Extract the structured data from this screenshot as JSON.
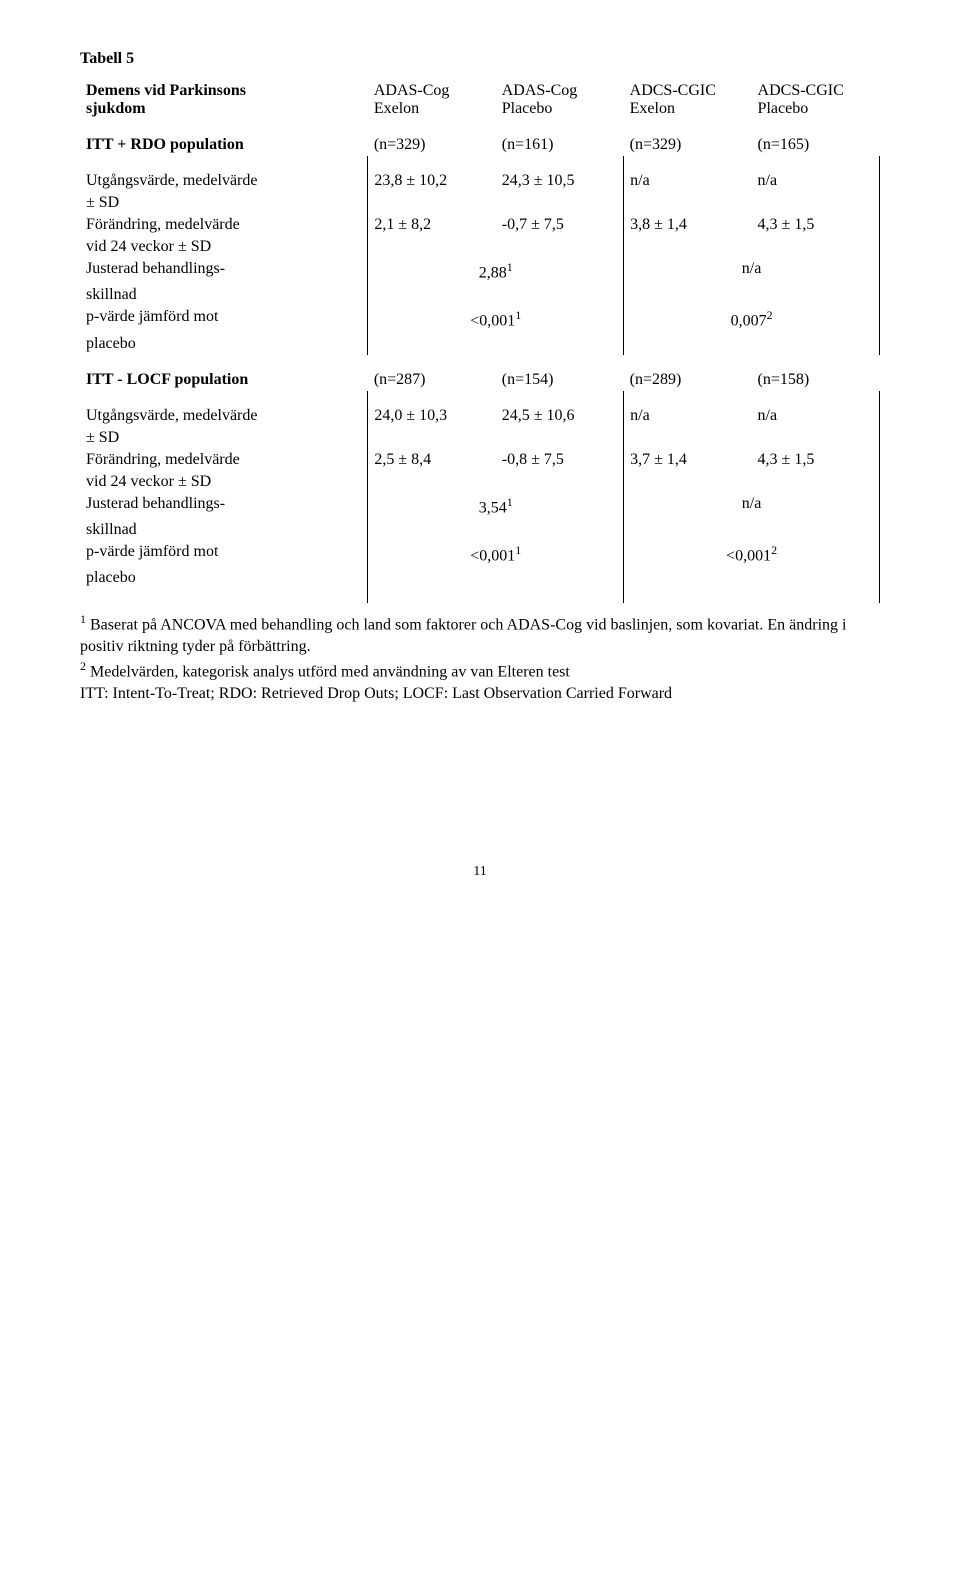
{
  "caption": "Tabell 5",
  "header": {
    "row_label_1": "Demens vid Parkinsons",
    "row_label_2": "sjukdom",
    "c1_l1": "ADAS-Cog",
    "c1_l2": "Exelon",
    "c2_l1": "ADAS-Cog",
    "c2_l2": "Placebo",
    "c3_l1": "ADCS-CGIC",
    "c3_l2": "Exelon",
    "c4_l1": "ADCS-CGIC",
    "c4_l2": "Placebo"
  },
  "section1": {
    "title": "ITT + RDO population",
    "n1": "(n=329)",
    "n2": "(n=161)",
    "n3": "(n=329)",
    "n4": "(n=165)",
    "r1": {
      "l1": "Utgångsvärde, medelvärde",
      "l2": "± SD",
      "c1": "23,8 ± 10,2",
      "c2": "24,3 ± 10,5",
      "c3": "n/a",
      "c4": "n/a"
    },
    "r2": {
      "l1": "Förändring, medelvärde",
      "l2": "vid 24 veckor ± SD",
      "c1": "2,1 ± 8,2",
      "c2": "-0,7 ± 7,5",
      "c3": "3,8 ± 1,4",
      "c4": "4,3 ± 1,5"
    },
    "r3": {
      "l1": "Justerad behandlings-",
      "l2": "skillnad",
      "v12": "2,88",
      "sup12": "1",
      "v34": "n/a"
    },
    "r4": {
      "l1": "p-värde jämförd mot",
      "l2": "placebo",
      "v12": "<0,001",
      "sup12": "1",
      "v34": "0,007",
      "sup34": "2"
    }
  },
  "section2": {
    "title": "ITT - LOCF population",
    "n1": "(n=287)",
    "n2": "(n=154)",
    "n3": "(n=289)",
    "n4": "(n=158)",
    "r1": {
      "l1": "Utgångsvärde, medelvärde",
      "l2": "± SD",
      "c1": "24,0 ± 10,3",
      "c2": "24,5 ± 10,6",
      "c3": "n/a",
      "c4": "n/a"
    },
    "r2": {
      "l1": "Förändring, medelvärde",
      "l2": "vid 24 veckor ± SD",
      "c1": "2,5 ± 8,4",
      "c2": "-0,8 ± 7,5",
      "c3": "3,7 ± 1,4",
      "c4": "4,3 ± 1,5"
    },
    "r3": {
      "l1": "Justerad behandlings-",
      "l2": "skillnad",
      "v12": "3,54",
      "sup12": "1",
      "v34": "n/a"
    },
    "r4": {
      "l1": "p-värde jämförd mot",
      "l2": "placebo",
      "v12": "<0,001",
      "sup12": "1",
      "v34": "<0,001",
      "sup34": "2"
    }
  },
  "footnotes": {
    "f1_sup": "1",
    "f1": " Baserat på ANCOVA med behandling och land som faktorer och ADAS-Cog vid baslinjen, som kovariat. En ändring i positiv riktning tyder på förbättring.",
    "f2_sup": "2",
    "f2": " Medelvärden, kategorisk analys utförd med användning av van Elteren test",
    "f3": "ITT: Intent-To-Treat; RDO: Retrieved Drop Outs; LOCF: Last Observation Carried Forward"
  },
  "pagenum": "11"
}
